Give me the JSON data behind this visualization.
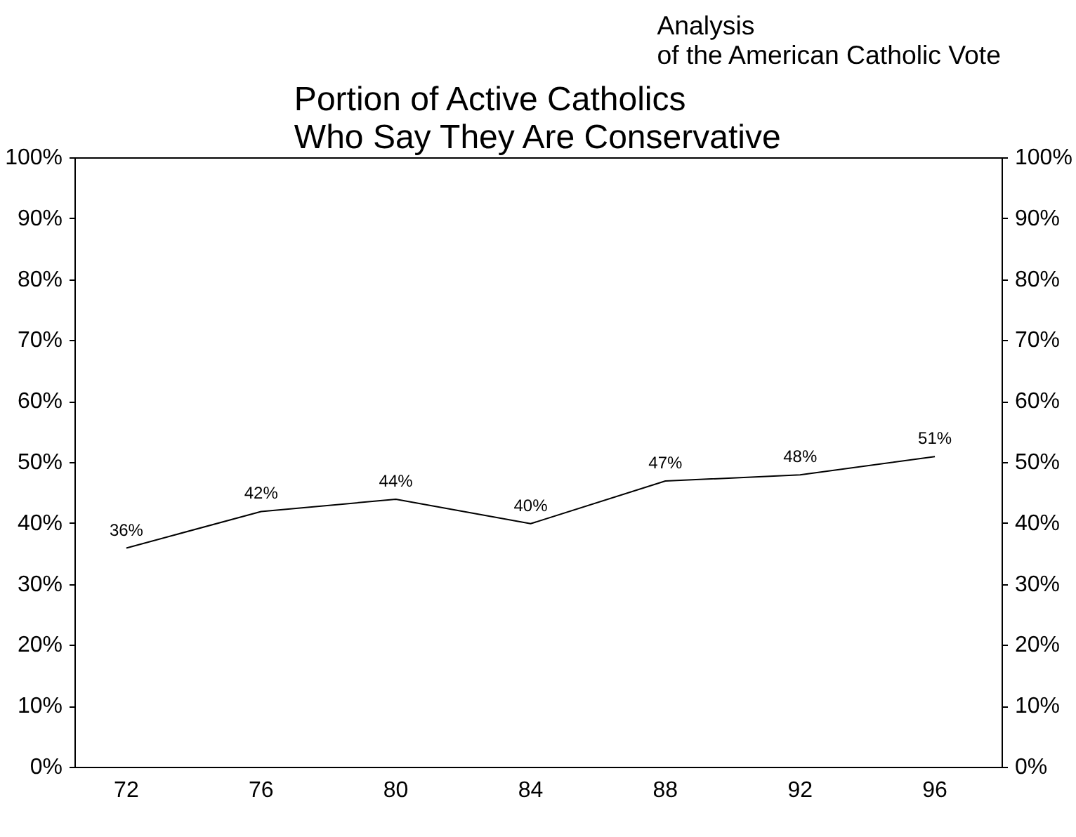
{
  "chart_data": {
    "type": "line",
    "title": "Portion of Active Catholics\nWho Say They Are Conservative",
    "subtitle": "Analysis\nof the American Catholic Vote",
    "categories": [
      "72",
      "76",
      "80",
      "84",
      "88",
      "92",
      "96"
    ],
    "series": [
      {
        "color": "#000000",
        "values": [
          36,
          42,
          44,
          40,
          47,
          48,
          51
        ],
        "value_labels": [
          "36%",
          "42%",
          "44%",
          "40%",
          "47%",
          "48%",
          "51%"
        ]
      }
    ],
    "ylim": [
      0,
      100
    ],
    "yticks": [
      {
        "value": 0,
        "label": "0%"
      },
      {
        "value": 10,
        "label": "10%"
      },
      {
        "value": 20,
        "label": "20%"
      },
      {
        "value": 30,
        "label": "30%"
      },
      {
        "value": 40,
        "label": "40%"
      },
      {
        "value": 50,
        "label": "50%"
      },
      {
        "value": 60,
        "label": "60%"
      },
      {
        "value": 70,
        "label": "70%"
      },
      {
        "value": 80,
        "label": "80%"
      },
      {
        "value": 90,
        "label": "90%"
      },
      {
        "value": 100,
        "label": "100%"
      }
    ],
    "y2lim": [
      0,
      100
    ],
    "y2ticks": [
      {
        "value": 0,
        "label": "0%"
      },
      {
        "value": 10,
        "label": "10%"
      },
      {
        "value": 20,
        "label": "20%"
      },
      {
        "value": 30,
        "label": "30%"
      },
      {
        "value": 40,
        "label": "40%"
      },
      {
        "value": 50,
        "label": "50%"
      },
      {
        "value": 60,
        "label": "60%"
      },
      {
        "value": 70,
        "label": "70%"
      },
      {
        "value": 80,
        "label": "80%"
      },
      {
        "value": 90,
        "label": "90%"
      },
      {
        "value": 100,
        "label": "100%"
      }
    ],
    "grid": false
  }
}
